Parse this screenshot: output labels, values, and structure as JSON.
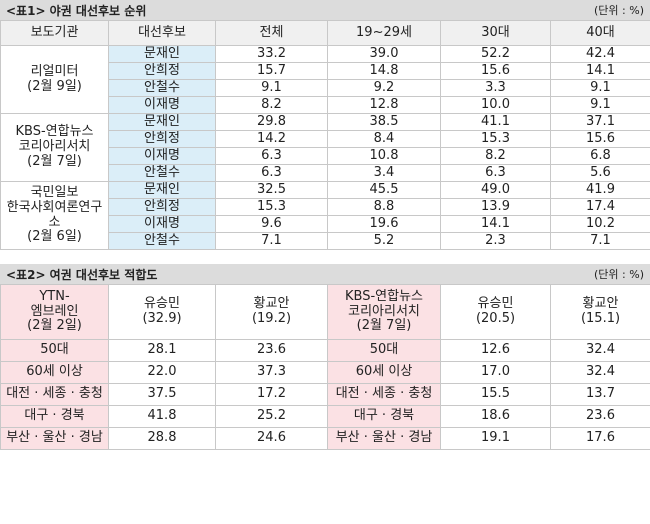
{
  "table1": {
    "title": "<표1> 야권 대선후보 순위",
    "unit": "(단위 : %)",
    "columns": [
      "보도기관",
      "대선후보",
      "전체",
      "19~29세",
      "30대",
      "40대"
    ],
    "groups": [
      {
        "source": [
          "리얼미터",
          "(2월 9일)"
        ],
        "rows": [
          [
            "문재인",
            "33.2",
            "39.0",
            "52.2",
            "42.4"
          ],
          [
            "안희정",
            "15.7",
            "14.8",
            "15.6",
            "14.1"
          ],
          [
            "안철수",
            "9.1",
            "9.2",
            "3.3",
            "9.1"
          ],
          [
            "이재명",
            "8.2",
            "12.8",
            "10.0",
            "9.1"
          ]
        ]
      },
      {
        "source": [
          "KBS-연합뉴스",
          "코리아리서치",
          "(2월 7일)"
        ],
        "rows": [
          [
            "문재인",
            "29.8",
            "38.5",
            "41.1",
            "37.1"
          ],
          [
            "안희정",
            "14.2",
            "8.4",
            "15.3",
            "15.6"
          ],
          [
            "이재명",
            "6.3",
            "10.8",
            "8.2",
            "6.8"
          ],
          [
            "안철수",
            "6.3",
            "3.4",
            "6.3",
            "5.6"
          ]
        ]
      },
      {
        "source": [
          "국민일보",
          "한국사회여론연구소",
          "(2월 6일)"
        ],
        "rows": [
          [
            "문재인",
            "32.5",
            "45.5",
            "49.0",
            "41.9"
          ],
          [
            "안희정",
            "15.3",
            "8.8",
            "13.9",
            "17.4"
          ],
          [
            "이재명",
            "9.6",
            "19.6",
            "14.1",
            "10.2"
          ],
          [
            "안철수",
            "7.1",
            "5.2",
            "2.3",
            "7.1"
          ]
        ]
      }
    ]
  },
  "table2": {
    "title": "<표2> 여권 대선후보 적합도",
    "unit": "(단위 : %)",
    "columns": [
      [
        "YTN-",
        "엠브레인",
        "(2월 2일)"
      ],
      [
        "유승민",
        "(32.9)"
      ],
      [
        "황교안",
        "(19.2)"
      ],
      [
        "KBS-연합뉴스",
        "코리아리서치",
        "(2월 7일)"
      ],
      [
        "유승민",
        "(20.5)"
      ],
      [
        "황교안",
        "(15.1)"
      ]
    ],
    "rows": [
      [
        "50대",
        "28.1",
        "23.6",
        "50대",
        "12.6",
        "32.4"
      ],
      [
        "60세 이상",
        "22.0",
        "37.3",
        "60세 이상",
        "17.0",
        "32.4"
      ],
      [
        "대전 · 세종 · 충청",
        "37.5",
        "17.2",
        "대전 · 세종 · 충청",
        "15.5",
        "13.7"
      ],
      [
        "대구 · 경북",
        "41.8",
        "25.2",
        "대구 · 경북",
        "18.6",
        "23.6"
      ],
      [
        "부산 · 울산 · 경남",
        "28.8",
        "24.6",
        "부산 · 울산 · 경남",
        "19.1",
        "17.6"
      ]
    ]
  }
}
